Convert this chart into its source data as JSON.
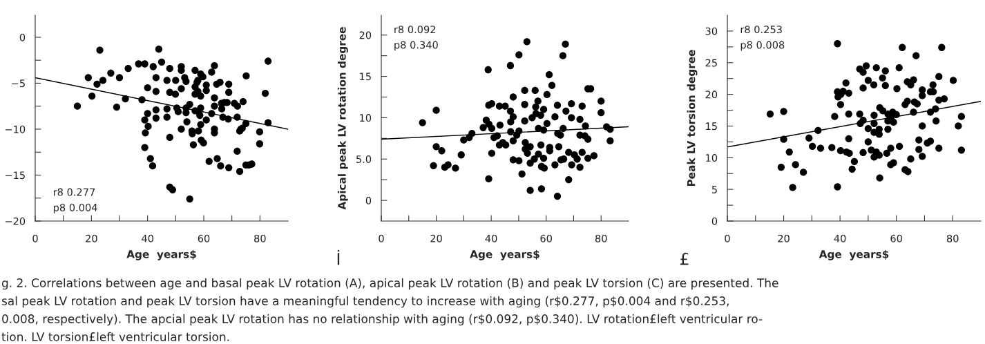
{
  "chart_data": [
    {
      "type": "scatter",
      "xlabel": "Age  years$",
      "xlim": [
        0,
        90
      ],
      "ylim": [
        -20,
        2.4
      ],
      "xticks": [
        0,
        {
          "value": 10,
          "label": null
        },
        20,
        {
          "value": 30,
          "label": null
        },
        40,
        {
          "value": 50,
          "label": null
        },
        60,
        {
          "value": 70,
          "label": null
        },
        80
      ],
      "yticks": [
        {
          "value": -20,
          "label": "−20"
        },
        {
          "value": -17.5,
          "label": null
        },
        {
          "value": -15,
          "label": "−15"
        },
        {
          "value": -12.5,
          "label": null
        },
        {
          "value": -10,
          "label": "−10"
        },
        {
          "value": -7.5,
          "label": null
        },
        {
          "value": -5,
          "label": "−5"
        },
        {
          "value": -2.5,
          "label": null
        },
        0
      ],
      "annotations": [
        "r8 0.277",
        "p8 0.004"
      ],
      "grid": false,
      "legend": false,
      "series": [
        {
          "type": "scatter",
          "color": "#000000",
          "marker": "circle",
          "x": [
            15.0,
            18.9,
            20.2,
            23.0,
            22.0,
            24.1,
            26.9,
            29.0,
            30.0,
            32.1,
            33.1,
            36.8,
            39.0,
            38.0,
            39.0,
            39.2,
            39.0,
            40.0,
            40.0,
            40.2,
            41.0,
            41.8,
            42.0,
            43.0,
            43.0,
            43.0,
            43.0,
            44.0,
            45.0,
            46.9,
            46.9,
            46.9,
            47.9,
            47.9,
            47.9,
            47.9,
            48.9,
            49.9,
            50.0,
            50.4,
            50.9,
            52.0,
            52.0,
            52.0,
            52.0,
            53.2,
            53.7,
            53.7,
            53.7,
            54.0,
            55.0,
            55.0,
            55.8,
            55.9,
            56.3,
            56.9,
            56.9,
            56.9,
            56.9,
            57.6,
            57.9,
            57.9,
            58.1,
            58.2,
            58.6,
            58.9,
            58.9,
            58.9,
            58.9,
            59.1,
            59.7,
            59.9,
            60.9,
            60.9,
            60.9,
            61.9,
            62.8,
            62.8,
            63.8,
            63.8,
            63.8,
            63.8,
            63.8,
            64.6,
            64.8,
            65.8,
            66.0,
            66.3,
            66.4,
            66.8,
            67.3,
            68.3,
            68.7,
            68.9,
            68.9,
            68.9,
            71.9,
            71.9,
            72.8,
            72.8,
            73.7,
            74.0,
            75.1,
            75.0,
            75.0,
            76.1,
            77.1,
            79.9,
            79.9,
            81.9,
            82.9,
            82.9,
            70.9,
            72.0,
            73.2
          ],
          "values": [
            -7.5,
            -4.4,
            -6.4,
            -1.4,
            -5.1,
            -4.7,
            -3.9,
            -7.6,
            -4.4,
            -6.7,
            -3.4,
            -2.9,
            -2.9,
            -6.8,
            -9.0,
            -10.4,
            -12.0,
            -8.3,
            -5.5,
            -9.7,
            -13.2,
            -14.0,
            -3.2,
            -4.4,
            -5.9,
            -7.9,
            -8.8,
            -1.3,
            -2.7,
            -4.7,
            -7.8,
            -8.7,
            -3.4,
            -6.0,
            -10.9,
            -16.3,
            -16.6,
            -6.2,
            -4.7,
            -7.7,
            -8.1,
            -3.2,
            -3.6,
            -5.6,
            -10.0,
            -4.4,
            -4.8,
            -7.7,
            -8.2,
            -9.2,
            -7.3,
            -17.6,
            -10.2,
            -10.5,
            -11.7,
            -3.6,
            -5.4,
            -6.2,
            -8.0,
            -4.9,
            -4.7,
            -5.9,
            -10.2,
            -8.1,
            -8.5,
            -4.0,
            -6.4,
            -7.7,
            -9.5,
            -11.2,
            -4.3,
            -11.5,
            -5.2,
            -5.8,
            -9.0,
            -13.5,
            -3.8,
            -8.3,
            -3.1,
            -6.6,
            -7.5,
            -10.0,
            -10.4,
            -5.1,
            -13.2,
            -4.9,
            -14.0,
            -7.2,
            -7.8,
            -8.7,
            -7.1,
            -7.1,
            -8.9,
            -5.1,
            -6.0,
            -14.2,
            -12.4,
            -8.7,
            -14.6,
            -10.2,
            -9.9,
            -7.0,
            -4.2,
            -9.4,
            -13.9,
            -13.9,
            -13.8,
            -10.3,
            -11.6,
            -6.1,
            -2.6,
            -9.3,
            -7.2,
            -7.5,
            -10.0
          ]
        },
        {
          "type": "line",
          "color": "#000000",
          "marker": "none",
          "line_style": "solid",
          "x": [
            0,
            90
          ],
          "values": [
            -4.4,
            -10.0
          ]
        }
      ]
    },
    {
      "type": "scatter",
      "xlabel": "Age  years$",
      "ylabel": "Apical peak LV rotation degree",
      "xlim": [
        0,
        90
      ],
      "ylim": [
        -2.5,
        22.4
      ],
      "xticks": [
        0,
        {
          "value": 10,
          "label": null
        },
        20,
        {
          "value": 30,
          "label": null
        },
        40,
        {
          "value": 50,
          "label": null
        },
        60,
        {
          "value": 70,
          "label": null
        },
        80
      ],
      "yticks": [
        0,
        {
          "value": 2.5,
          "label": null
        },
        {
          "value": 5,
          "label": "5.0"
        },
        {
          "value": 7.5,
          "label": null
        },
        10,
        {
          "value": 12.5,
          "label": null
        },
        15,
        {
          "value": 17.5,
          "label": null
        },
        20
      ],
      "annotations": [
        "r8 0.092",
        "p8 0.340",
        "İ"
      ],
      "grid": false,
      "legend": false,
      "series": [
        {
          "type": "scatter",
          "color": "#000000",
          "marker": "circle",
          "x": [
            15.0,
            19.0,
            20.0,
            20.0,
            22.0,
            23.1,
            24.3,
            27.0,
            29.1,
            30.0,
            32.0,
            33.0,
            37.1,
            38.2,
            38.9,
            39.1,
            39.1,
            39.2,
            40.2,
            40.2,
            40.2,
            41.0,
            42.2,
            43.0,
            43.0,
            43.2,
            44.2,
            45.1,
            45.3,
            47.0,
            47.0,
            47.1,
            47.1,
            48.0,
            48.0,
            48.0,
            48.0,
            49.3,
            50.1,
            50.1,
            50.1,
            51.2,
            52.2,
            52.2,
            52.2,
            52.4,
            52.4,
            53.0,
            53.2,
            54.2,
            54.2,
            54.2,
            54.9,
            55.7,
            56.0,
            56.2,
            56.3,
            57.0,
            57.2,
            57.2,
            58.0,
            58.1,
            58.3,
            58.3,
            59.1,
            59.1,
            59.1,
            59.3,
            60.3,
            60.3,
            61.1,
            61.3,
            61.3,
            62.1,
            63.2,
            63.2,
            64.1,
            64.1,
            64.2,
            64.6,
            65.2,
            65.4,
            66.1,
            66.2,
            66.4,
            67.0,
            67.2,
            68.2,
            68.2,
            69.2,
            69.2,
            69.3,
            70.3,
            71.3,
            72.3,
            72.3,
            72.3,
            73.1,
            73.1,
            74.1,
            74.3,
            75.2,
            75.2,
            75.2,
            76.2,
            77.4,
            80.0,
            80.0,
            82.0,
            83.3,
            83.3
          ],
          "values": [
            9.4,
            4.2,
            10.9,
            6.5,
            6.0,
            4.0,
            4.3,
            3.9,
            5.5,
            7.3,
            7.6,
            8.1,
            8.8,
            9.7,
            15.8,
            11.5,
            2.6,
            9.2,
            11.7,
            8.7,
            5.7,
            7.6,
            7.8,
            11.4,
            6.7,
            9.1,
            7.0,
            11.4,
            6.7,
            16.3,
            10.8,
            9.5,
            8.3,
            12.5,
            10.1,
            7.2,
            4.9,
            7.9,
            17.6,
            8.4,
            4.8,
            3.2,
            13.3,
            11.6,
            9.6,
            7.0,
            6.2,
            19.2,
            5.7,
            6.5,
            4.5,
            1.2,
            10.0,
            5.0,
            13.3,
            11.3,
            10.5,
            12.0,
            8.7,
            5.6,
            10.3,
            6.7,
            4.1,
            1.4,
            11.0,
            8.5,
            5.1,
            3.9,
            12.8,
            9.3,
            15.2,
            6.4,
            6.0,
            13.9,
            10.1,
            4.3,
            11.5,
            0.5,
            8.1,
            6.5,
            7.9,
            4.9,
            17.5,
            8.7,
            5.0,
            18.9,
            10.8,
            5.8,
            2.5,
            11.7,
            10.0,
            4.3,
            5.5,
            5.0,
            9.8,
            7.9,
            4.0,
            11.4,
            5.8,
            7.8,
            9.0,
            13.5,
            7.4,
            5.1,
            13.5,
            5.4,
            12.0,
            10.6,
            8.9,
            8.6,
            7.2
          ]
        },
        {
          "type": "line",
          "color": "#000000",
          "marker": "none",
          "line_style": "solid",
          "x": [
            0,
            90
          ],
          "values": [
            7.4,
            8.9
          ]
        }
      ]
    },
    {
      "type": "scatter",
      "xlabel": "Age  years$",
      "ylabel": "Peak LV torsion degree",
      "xlim": [
        0,
        90
      ],
      "ylim": [
        0,
        32.5
      ],
      "xticks": [
        0,
        {
          "value": 10,
          "label": null
        },
        20,
        {
          "value": 30,
          "label": null
        },
        40,
        {
          "value": 50,
          "label": null
        },
        60,
        {
          "value": 70,
          "label": null
        },
        80
      ],
      "yticks": [
        0,
        {
          "value": 2.5,
          "label": null
        },
        5,
        {
          "value": 7.5,
          "label": null
        },
        10,
        {
          "value": 12.5,
          "label": null
        },
        15,
        {
          "value": 17.5,
          "label": null
        },
        20,
        {
          "value": 22.5,
          "label": null
        },
        25,
        {
          "value": 27.5,
          "label": null
        },
        30
      ],
      "annotations": [
        "r8 0.253",
        "p8 0.008",
        "£"
      ],
      "grid": false,
      "legend": false,
      "series": [
        {
          "type": "scatter",
          "color": "#000000",
          "marker": "circle",
          "x": [
            15.2,
            19.1,
            20.0,
            20.0,
            22.0,
            23.2,
            24.2,
            27.0,
            29.0,
            30.2,
            32.2,
            33.1,
            37.1,
            38.1,
            39.1,
            39.1,
            39.1,
            39.3,
            40.2,
            40.2,
            40.3,
            41.1,
            42.1,
            42.3,
            43.1,
            43.1,
            43.1,
            43.3,
            44.3,
            45.1,
            47.0,
            47.0,
            47.2,
            48.2,
            48.2,
            48.2,
            48.2,
            49.3,
            50.0,
            50.0,
            50.0,
            51.1,
            52.0,
            52.1,
            52.1,
            52.1,
            52.1,
            52.9,
            52.9,
            53.9,
            53.9,
            53.9,
            54.1,
            54.1,
            55.1,
            55.2,
            56.1,
            56.1,
            56.6,
            57.0,
            57.0,
            57.0,
            58.0,
            58.0,
            58.2,
            58.7,
            59.0,
            59.0,
            60.0,
            60.2,
            61.0,
            61.1,
            62.1,
            63.1,
            63.1,
            63.9,
            63.9,
            64.1,
            65.1,
            65.1,
            66.1,
            66.1,
            66.4,
            67.0,
            67.4,
            68.0,
            68.0,
            69.2,
            69.2,
            69.2,
            69.2,
            71.0,
            72.1,
            72.1,
            72.1,
            73.0,
            73.1,
            73.9,
            74.1,
            75.1,
            75.1,
            75.1,
            76.1,
            77.0,
            80.2,
            82.0,
            83.1,
            83.1
          ],
          "values": [
            16.9,
            8.5,
            17.3,
            12.9,
            10.9,
            5.3,
            8.9,
            7.7,
            13.1,
            11.8,
            14.3,
            11.5,
            11.6,
            16.5,
            28.0,
            5.4,
            20.4,
            19.6,
            18.4,
            11.1,
            20.0,
            20.5,
            21.8,
            10.9,
            20.2,
            16.9,
            13.0,
            10.7,
            8.2,
            9.4,
            24.0,
            16.9,
            15.4,
            23.5,
            21.0,
            15.9,
            10.8,
            24.5,
            22.2,
            14.6,
            12.5,
            11.2,
            21.5,
            16.7,
            15.4,
            14.0,
            10.1,
            24.2,
            10.9,
            14.5,
            13.7,
            10.4,
            6.8,
            17.9,
            22.6,
            17.4,
            23.7,
            21.4,
            10.7,
            16.9,
            15.8,
            14.5,
            11.5,
            8.9,
            16.4,
            17.2,
            15.6,
            9.2,
            16.8,
            20.9,
            24.2,
            11.8,
            27.4,
            18.4,
            8.1,
            22.0,
            18.9,
            7.8,
            21.5,
            9.8,
            22.3,
            17.2,
            18.8,
            26.1,
            18.5,
            12.8,
            11.3,
            20.7,
            19.8,
            15.0,
            10.2,
            12.3,
            12.6,
            17.2,
            20.4,
            21.5,
            20.4,
            17.7,
            15.8,
            22.8,
            19.1,
            11.5,
            27.4,
            19.3,
            22.2,
            15.0,
            16.5,
            11.2
          ]
        },
        {
          "type": "line",
          "color": "#000000",
          "marker": "none",
          "line_style": "solid",
          "x": [
            0,
            90
          ],
          "values": [
            11.7,
            18.9
          ]
        }
      ]
    },
    {
      "type": "other",
      "annotations": [
        "g. 2. Correlations between age and basal peak LV rotation (A), apical peak LV rotation (B) and peak LV torsion (C) are presented. The",
        "sal peak LV rotation and peak LV torsion have a meaningful tendency to increase with aging (r$0.277, p$0.004 and r$0.253,",
        "0.008, respectively). The apcial peak LV rotation has no relationship with aging (r$0.092, p$0.340). LV rotation£left ventricular ro-",
        "tion. LV torsion£left ventricular torsion."
      ]
    }
  ]
}
